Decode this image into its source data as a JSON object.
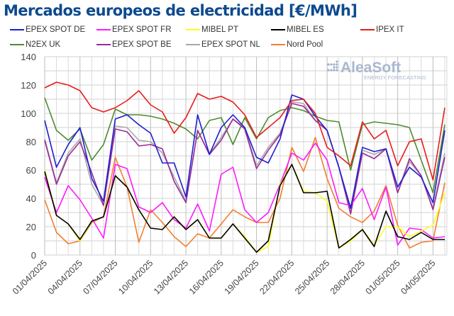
{
  "chart_data": {
    "type": "line",
    "title": "Mercados europeos de electricidad [€/MWh]",
    "xlabel": "",
    "ylabel": "",
    "ylim": [
      0,
      140
    ],
    "yticks": [
      0,
      20,
      40,
      60,
      80,
      100,
      120,
      140
    ],
    "grid": true,
    "legend": "top",
    "watermark": "AleaSoft ENERGY FORECASTING",
    "x": [
      "01/04/2025",
      "02/04/2025",
      "03/04/2025",
      "04/04/2025",
      "05/04/2025",
      "06/04/2025",
      "07/04/2025",
      "08/04/2025",
      "09/04/2025",
      "10/04/2025",
      "11/04/2025",
      "12/04/2025",
      "13/04/2025",
      "14/04/2025",
      "15/04/2025",
      "16/04/2025",
      "17/04/2025",
      "18/04/2025",
      "19/04/2025",
      "20/04/2025",
      "21/04/2025",
      "22/04/2025",
      "23/04/2025",
      "24/04/2025",
      "25/04/2025",
      "26/04/2025",
      "27/04/2025",
      "28/04/2025",
      "29/04/2025",
      "30/04/2025",
      "01/05/2025",
      "02/05/2025",
      "03/05/2025",
      "04/05/2025",
      "05/05/2025"
    ],
    "xtick_labels": [
      "01/04/2025",
      "04/04/2025",
      "07/04/2025",
      "10/04/2025",
      "13/04/2025",
      "16/04/2025",
      "19/04/2025",
      "22/04/2025",
      "25/04/2025",
      "28/04/2025",
      "01/05/2025",
      "04/05/2025"
    ],
    "series": [
      {
        "name": "EPEX SPOT DE",
        "color": "#1f1fd0",
        "values": [
          95,
          62,
          78,
          90,
          54,
          38,
          96,
          99,
          92,
          86,
          65,
          65,
          41,
          99,
          71,
          90,
          99,
          90,
          69,
          65,
          82,
          113,
          110,
          98,
          88,
          62,
          33,
          76,
          73,
          75,
          48,
          62,
          55,
          37,
          88
        ]
      },
      {
        "name": "EPEX SPOT FR",
        "color": "#ff1aff",
        "values": [
          55,
          30,
          49,
          39,
          26,
          12,
          64,
          61,
          34,
          30,
          37,
          25,
          19,
          36,
          17,
          57,
          62,
          32,
          23,
          30,
          50,
          72,
          67,
          79,
          67,
          37,
          35,
          47,
          25,
          48,
          7,
          19,
          18,
          12,
          13
        ]
      },
      {
        "name": "MIBEL PT",
        "color": "#ffff1a",
        "values": [
          60,
          28,
          22,
          10,
          24,
          27,
          56,
          48,
          32,
          19,
          18,
          27,
          18,
          25,
          12,
          12,
          22,
          13,
          2,
          6,
          50,
          64,
          45,
          44,
          38,
          5,
          10,
          18,
          7,
          20,
          20,
          13,
          17,
          21,
          44
        ]
      },
      {
        "name": "MIBEL ES",
        "color": "#000000",
        "values": [
          59,
          28,
          22,
          11,
          24,
          27,
          56,
          48,
          32,
          19,
          18,
          27,
          18,
          25,
          12,
          12,
          22,
          12,
          2,
          10,
          49,
          64,
          44,
          44,
          45,
          5,
          11,
          18,
          6,
          31,
          13,
          11,
          16,
          11,
          11
        ]
      },
      {
        "name": "IPEX IT",
        "color": "#e81c1c",
        "values": [
          118,
          122,
          120,
          116,
          104,
          101,
          104,
          109,
          116,
          106,
          101,
          86,
          97,
          114,
          110,
          112,
          108,
          99,
          83,
          90,
          97,
          109,
          110,
          100,
          76,
          70,
          63,
          94,
          82,
          88,
          63,
          80,
          82,
          53,
          104
        ]
      },
      {
        "name": "N2EX UK",
        "color": "#4f8a2f",
        "values": [
          111,
          88,
          81,
          89,
          67,
          78,
          103,
          99,
          99,
          98,
          96,
          93,
          89,
          82,
          95,
          97,
          78,
          97,
          82,
          97,
          102,
          104,
          102,
          98,
          95,
          94,
          60,
          92,
          94,
          93,
          92,
          90,
          67,
          44,
          92
        ]
      },
      {
        "name": "EPEX SPOT BE",
        "color": "#9a2a9a",
        "values": [
          81,
          50,
          70,
          80,
          58,
          35,
          89,
          87,
          77,
          78,
          75,
          52,
          37,
          88,
          71,
          81,
          96,
          89,
          61,
          74,
          85,
          107,
          105,
          95,
          88,
          62,
          29,
          72,
          68,
          75,
          44,
          68,
          56,
          32,
          69
        ]
      },
      {
        "name": "EPEX SPOT NL",
        "color": "#a8a8a8",
        "values": [
          82,
          51,
          72,
          82,
          50,
          35,
          91,
          90,
          81,
          80,
          72,
          55,
          38,
          88,
          71,
          83,
          96,
          90,
          63,
          76,
          86,
          108,
          107,
          95,
          88,
          62,
          30,
          74,
          71,
          75,
          44,
          66,
          56,
          33,
          72
        ]
      },
      {
        "name": "Nord Pool",
        "color": "#f07f30",
        "values": [
          39,
          16,
          8,
          10,
          23,
          27,
          69,
          48,
          9,
          32,
          23,
          13,
          6,
          15,
          12,
          22,
          32,
          27,
          23,
          23,
          40,
          76,
          59,
          83,
          54,
          33,
          27,
          23,
          31,
          49,
          21,
          5,
          9,
          10,
          51
        ]
      }
    ]
  }
}
